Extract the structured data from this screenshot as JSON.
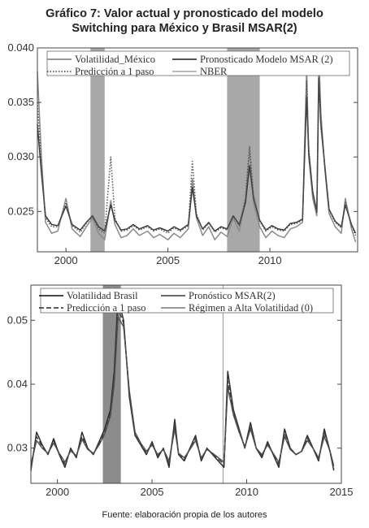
{
  "title_line1": "Gráfico 7: Valor actual y pronosticado del modelo",
  "title_line2": "Switching para México y Brasil MSAR(2)",
  "source": "Fuente: elaboración propia de los autores",
  "chart_data": [
    {
      "type": "line",
      "xlim": [
        1998.6,
        2014.3
      ],
      "ylim": [
        0.0213,
        0.04
      ],
      "x_ticks": [
        2000,
        2005,
        2010
      ],
      "y_ticks": [
        0.025,
        0.03,
        0.035,
        0.04
      ],
      "y_tick_labels": [
        "0.025",
        "0.030",
        "0.035",
        "0.040"
      ],
      "x_tick_labels": [
        "2000",
        "2005",
        "2010"
      ],
      "legend_position": "top",
      "shaded_regions": [
        [
          2001.2,
          2001.9
        ],
        [
          2007.9,
          2009.5
        ]
      ],
      "shaded_color": "#a8a8a8",
      "series": [
        {
          "name": "Volatilidad_México",
          "color": "#8a8a8a",
          "style": "solid",
          "x": [
            1998.6,
            1998.8,
            1999.0,
            1999.3,
            1999.6,
            2000.0,
            2000.3,
            2000.7,
            2001.0,
            2001.3,
            2001.6,
            2001.9,
            2002.2,
            2002.4,
            2002.7,
            2003.0,
            2003.3,
            2003.6,
            2004.0,
            2004.3,
            2004.6,
            2005.0,
            2005.3,
            2005.6,
            2006.0,
            2006.2,
            2006.4,
            2006.7,
            2007.0,
            2007.3,
            2007.6,
            2007.9,
            2008.2,
            2008.5,
            2008.8,
            2009.0,
            2009.2,
            2009.5,
            2009.8,
            2010.1,
            2010.4,
            2010.7,
            2011.0,
            2011.3,
            2011.6,
            2011.8,
            2011.9,
            2012.1,
            2012.3,
            2012.4,
            2012.5,
            2012.7,
            2012.9,
            2013.2,
            2013.5,
            2013.7,
            2014.0,
            2014.2
          ],
          "y": [
            0.0378,
            0.03,
            0.024,
            0.023,
            0.0232,
            0.0262,
            0.0234,
            0.0227,
            0.0236,
            0.0244,
            0.023,
            0.0224,
            0.026,
            0.0238,
            0.0226,
            0.0228,
            0.0234,
            0.0228,
            0.0232,
            0.0226,
            0.0229,
            0.0224,
            0.023,
            0.0226,
            0.0234,
            0.028,
            0.0244,
            0.0228,
            0.0236,
            0.0224,
            0.0231,
            0.0227,
            0.0244,
            0.0232,
            0.026,
            0.0306,
            0.0258,
            0.0236,
            0.0226,
            0.0232,
            0.0228,
            0.0226,
            0.0234,
            0.0236,
            0.024,
            0.0382,
            0.03,
            0.0262,
            0.0246,
            0.0395,
            0.034,
            0.0288,
            0.0248,
            0.0236,
            0.023,
            0.0262,
            0.0234,
            0.0222
          ]
        },
        {
          "name": "Pronosticado Modelo MSAR (2)",
          "color": "#3a3a3a",
          "style": "solid",
          "x": [
            1998.6,
            1998.8,
            1999.0,
            1999.3,
            1999.6,
            2000.0,
            2000.3,
            2000.7,
            2001.0,
            2001.3,
            2001.6,
            2001.9,
            2002.2,
            2002.4,
            2002.7,
            2003.0,
            2003.3,
            2003.6,
            2004.0,
            2004.3,
            2004.6,
            2005.0,
            2005.3,
            2005.6,
            2006.0,
            2006.2,
            2006.4,
            2006.7,
            2007.0,
            2007.3,
            2007.6,
            2007.9,
            2008.2,
            2008.5,
            2008.8,
            2009.0,
            2009.2,
            2009.5,
            2009.8,
            2010.1,
            2010.4,
            2010.7,
            2011.0,
            2011.3,
            2011.6,
            2011.8,
            2011.9,
            2012.1,
            2012.3,
            2012.4,
            2012.5,
            2012.7,
            2012.9,
            2013.2,
            2013.5,
            2013.7,
            2014.0,
            2014.2
          ],
          "y": [
            0.033,
            0.0285,
            0.0246,
            0.0238,
            0.0237,
            0.0255,
            0.0238,
            0.0233,
            0.024,
            0.0246,
            0.0236,
            0.0232,
            0.0256,
            0.0242,
            0.0233,
            0.0234,
            0.0238,
            0.0234,
            0.0237,
            0.0233,
            0.0235,
            0.0232,
            0.0236,
            0.0233,
            0.0238,
            0.0272,
            0.0246,
            0.0234,
            0.024,
            0.0232,
            0.0236,
            0.0234,
            0.0246,
            0.0238,
            0.0258,
            0.0292,
            0.0262,
            0.0242,
            0.0233,
            0.0237,
            0.0234,
            0.0233,
            0.0239,
            0.024,
            0.0243,
            0.0355,
            0.0305,
            0.0268,
            0.025,
            0.0372,
            0.033,
            0.029,
            0.0252,
            0.0241,
            0.0236,
            0.0256,
            0.0238,
            0.023
          ]
        },
        {
          "name": "Predicción a 1 paso",
          "color": "#555555",
          "style": "dotted",
          "x": [
            1998.6,
            1998.8,
            1999.0,
            1999.3,
            1999.6,
            2000.0,
            2000.3,
            2000.7,
            2001.0,
            2001.3,
            2001.6,
            2001.9,
            2002.2,
            2002.4,
            2002.7,
            2003.0,
            2003.3,
            2003.6,
            2004.0,
            2004.3,
            2004.6,
            2005.0,
            2005.3,
            2005.6,
            2006.0,
            2006.2,
            2006.4,
            2006.7,
            2007.0,
            2007.3,
            2007.6,
            2007.9,
            2008.2,
            2008.5,
            2008.8,
            2009.0,
            2009.2,
            2009.5,
            2009.8,
            2010.1,
            2010.4,
            2010.7,
            2011.0,
            2011.3,
            2011.6,
            2011.8,
            2011.9,
            2012.1,
            2012.3,
            2012.4,
            2012.5,
            2012.7,
            2012.9,
            2013.2,
            2013.5,
            2013.7,
            2014.0,
            2014.2
          ],
          "y": [
            0.035,
            0.0292,
            0.0244,
            0.0236,
            0.0236,
            0.0258,
            0.0237,
            0.0231,
            0.0239,
            0.0246,
            0.0234,
            0.023,
            0.03,
            0.0244,
            0.0232,
            0.0233,
            0.0237,
            0.0233,
            0.0236,
            0.0232,
            0.0234,
            0.023,
            0.0235,
            0.0232,
            0.0237,
            0.0296,
            0.0248,
            0.0233,
            0.0239,
            0.0231,
            0.0235,
            0.0233,
            0.0246,
            0.0237,
            0.0262,
            0.031,
            0.0264,
            0.0241,
            0.0232,
            0.0236,
            0.0233,
            0.0232,
            0.0238,
            0.0239,
            0.0242,
            0.037,
            0.031,
            0.0266,
            0.0249,
            0.038,
            0.0326,
            0.0292,
            0.0251,
            0.024,
            0.0235,
            0.0259,
            0.0237,
            0.0228
          ]
        },
        {
          "name": "NBER",
          "color": "#b0b0b0",
          "style": "solid"
        }
      ]
    },
    {
      "type": "line",
      "xlim": [
        1998.6,
        2015.0
      ],
      "ylim": [
        0.0245,
        0.0555
      ],
      "x_ticks": [
        2000,
        2005,
        2010,
        2015
      ],
      "y_ticks": [
        0.03,
        0.04,
        0.05
      ],
      "y_tick_labels": [
        "0.03",
        "0.04",
        "0.05"
      ],
      "x_tick_labels": [
        "2000",
        "2005",
        "2010",
        "2015"
      ],
      "legend_position": "top",
      "shaded_regions": [
        [
          2002.4,
          2003.35
        ]
      ],
      "shaded_color": "#8c8c8c",
      "vertical_lines": [
        2008.75
      ],
      "series": [
        {
          "name": "Volatilidad Brasil",
          "color": "#2e2e2e",
          "style": "solid",
          "x": [
            1998.6,
            1998.9,
            1999.2,
            1999.5,
            1999.8,
            2000.1,
            2000.4,
            2000.7,
            2001.0,
            2001.3,
            2001.6,
            2001.9,
            2002.2,
            2002.5,
            2002.8,
            2003.0,
            2003.2,
            2003.5,
            2003.8,
            2004.1,
            2004.4,
            2004.7,
            2005.0,
            2005.3,
            2005.6,
            2005.9,
            2006.2,
            2006.4,
            2006.7,
            2007.0,
            2007.3,
            2007.6,
            2007.9,
            2008.2,
            2008.5,
            2008.8,
            2009.0,
            2009.3,
            2009.6,
            2009.9,
            2010.2,
            2010.5,
            2010.8,
            2011.1,
            2011.4,
            2011.7,
            2012.0,
            2012.3,
            2012.6,
            2012.9,
            2013.2,
            2013.5,
            2013.8,
            2014.1,
            2014.4,
            2014.6
          ],
          "y": [
            0.0265,
            0.0325,
            0.0305,
            0.029,
            0.0315,
            0.029,
            0.027,
            0.03,
            0.0285,
            0.0325,
            0.03,
            0.029,
            0.031,
            0.033,
            0.036,
            0.042,
            0.0535,
            0.05,
            0.038,
            0.032,
            0.0305,
            0.029,
            0.031,
            0.0285,
            0.03,
            0.027,
            0.0345,
            0.029,
            0.028,
            0.03,
            0.032,
            0.028,
            0.03,
            0.029,
            0.028,
            0.027,
            0.042,
            0.036,
            0.033,
            0.03,
            0.034,
            0.03,
            0.0285,
            0.031,
            0.029,
            0.027,
            0.033,
            0.03,
            0.029,
            0.0295,
            0.032,
            0.03,
            0.028,
            0.033,
            0.0295,
            0.0265
          ]
        },
        {
          "name": "Pronóstico MSAR(2)",
          "color": "#555555",
          "style": "solid",
          "x": [
            1998.6,
            1998.9,
            1999.2,
            1999.5,
            1999.8,
            2000.1,
            2000.4,
            2000.7,
            2001.0,
            2001.3,
            2001.6,
            2001.9,
            2002.2,
            2002.5,
            2002.8,
            2003.0,
            2003.2,
            2003.5,
            2003.8,
            2004.1,
            2004.4,
            2004.7,
            2005.0,
            2005.3,
            2005.6,
            2005.9,
            2006.2,
            2006.4,
            2006.7,
            2007.0,
            2007.3,
            2007.6,
            2007.9,
            2008.2,
            2008.5,
            2008.8,
            2009.0,
            2009.3,
            2009.6,
            2009.9,
            2010.2,
            2010.5,
            2010.8,
            2011.1,
            2011.4,
            2011.7,
            2012.0,
            2012.3,
            2012.6,
            2012.9,
            2013.2,
            2013.5,
            2013.8,
            2014.1,
            2014.4,
            2014.6
          ],
          "y": [
            0.0275,
            0.0312,
            0.03,
            0.0292,
            0.0308,
            0.0292,
            0.0278,
            0.0296,
            0.0288,
            0.0314,
            0.0298,
            0.0292,
            0.0305,
            0.0322,
            0.035,
            0.04,
            0.0505,
            0.049,
            0.039,
            0.0325,
            0.0308,
            0.0295,
            0.0305,
            0.029,
            0.0298,
            0.028,
            0.033,
            0.0292,
            0.0285,
            0.0298,
            0.0312,
            0.0285,
            0.0298,
            0.0292,
            0.0285,
            0.0278,
            0.0395,
            0.0352,
            0.0325,
            0.0302,
            0.033,
            0.03,
            0.029,
            0.0305,
            0.0292,
            0.0278,
            0.0318,
            0.0298,
            0.029,
            0.0295,
            0.0312,
            0.03,
            0.0285,
            0.0318,
            0.0296,
            0.0272
          ]
        },
        {
          "name": "Predicción a 1 paso",
          "color": "#444444",
          "style": "dashed",
          "x": [
            1998.6,
            1998.9,
            1999.2,
            1999.5,
            1999.8,
            2000.1,
            2000.4,
            2000.7,
            2001.0,
            2001.3,
            2001.6,
            2001.9,
            2002.2,
            2002.5,
            2002.8,
            2003.0,
            2003.2,
            2003.5,
            2003.8,
            2004.1,
            2004.4,
            2004.7,
            2005.0,
            2005.3,
            2005.6,
            2005.9,
            2006.2,
            2006.4,
            2006.7,
            2007.0,
            2007.3,
            2007.6,
            2007.9,
            2008.2,
            2008.5,
            2008.8,
            2009.0,
            2009.3,
            2009.6,
            2009.9,
            2010.2,
            2010.5,
            2010.8,
            2011.1,
            2011.4,
            2011.7,
            2012.0,
            2012.3,
            2012.6,
            2012.9,
            2013.2,
            2013.5,
            2013.8,
            2014.1,
            2014.4,
            2014.6
          ],
          "y": [
            0.027,
            0.0318,
            0.0302,
            0.0291,
            0.0311,
            0.0291,
            0.0275,
            0.0298,
            0.0287,
            0.0318,
            0.0299,
            0.0291,
            0.0307,
            0.0326,
            0.0354,
            0.041,
            0.052,
            0.0495,
            0.0385,
            0.0322,
            0.0306,
            0.0292,
            0.0307,
            0.0288,
            0.0299,
            0.0276,
            0.0337,
            0.0291,
            0.0283,
            0.0299,
            0.0316,
            0.0283,
            0.0299,
            0.0291,
            0.0283,
            0.0275,
            0.0405,
            0.0356,
            0.0328,
            0.0301,
            0.0335,
            0.03,
            0.0288,
            0.0307,
            0.0291,
            0.0275,
            0.0324,
            0.0299,
            0.029,
            0.0295,
            0.0316,
            0.03,
            0.0283,
            0.0324,
            0.0295,
            0.0268
          ]
        },
        {
          "name": "Régimen a Alta Volatilidad (0)",
          "color": "#8c8c8c",
          "style": "solid"
        }
      ]
    }
  ]
}
